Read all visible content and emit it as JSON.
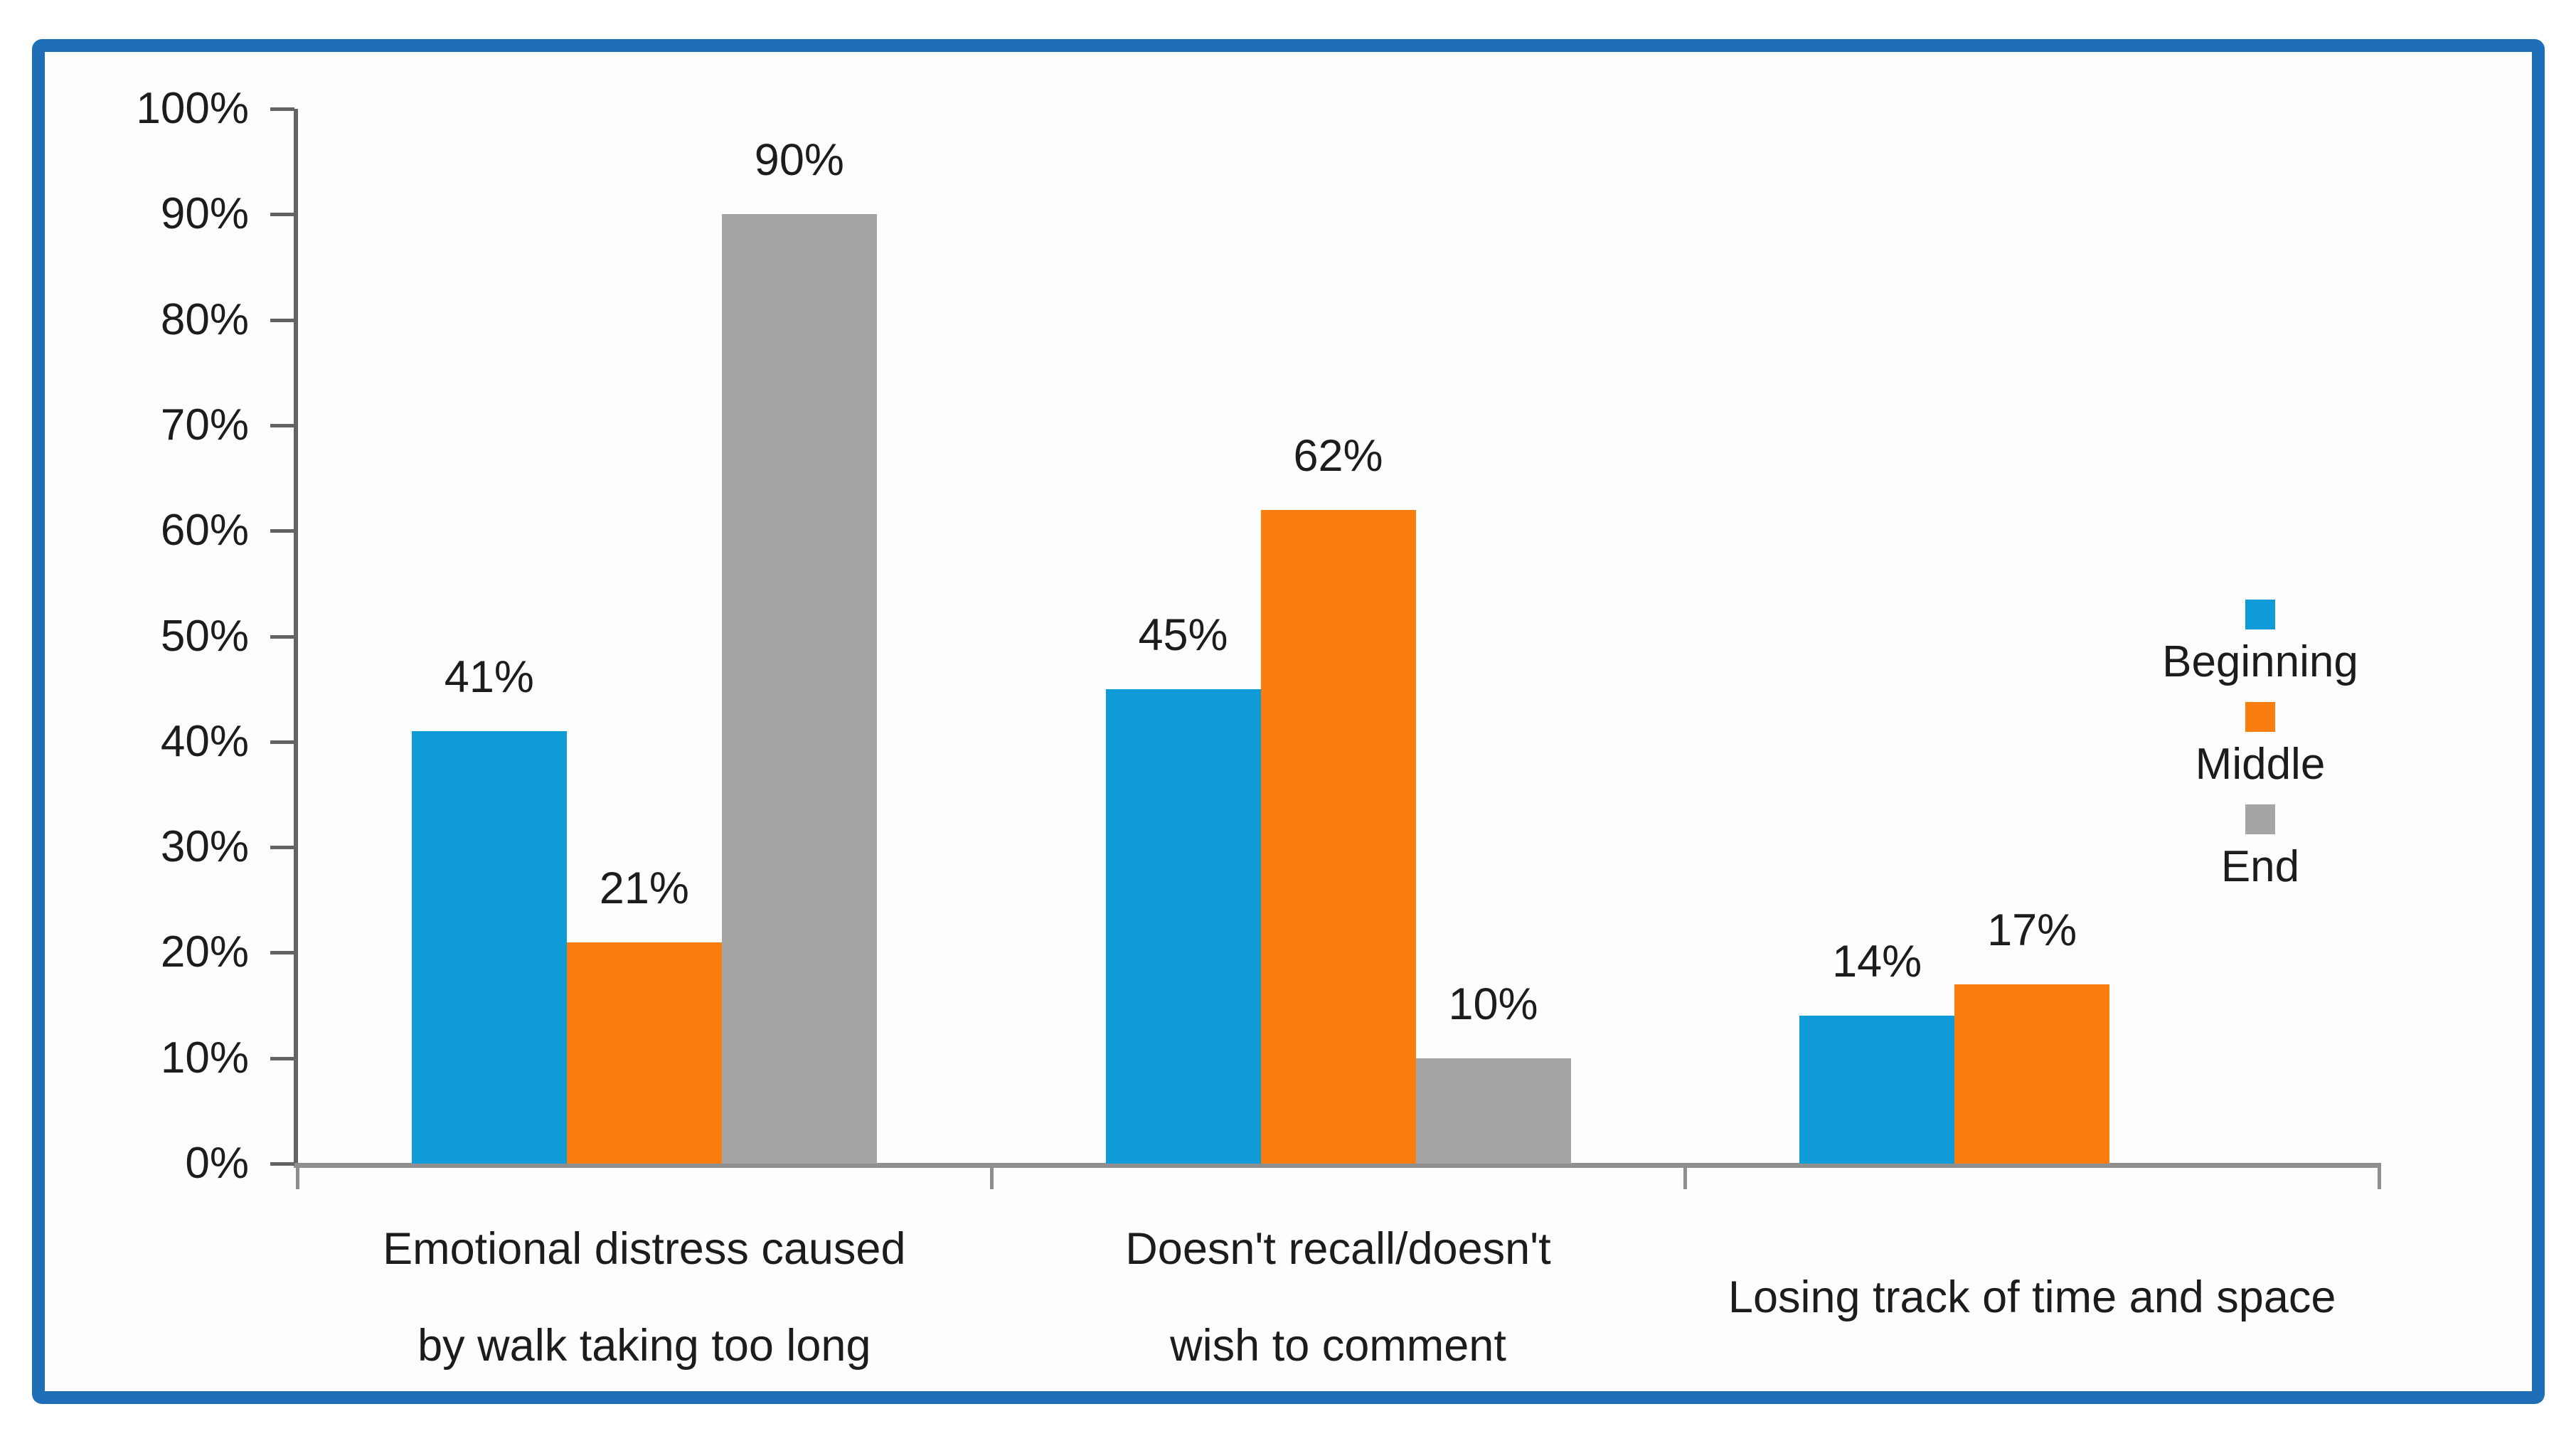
{
  "frame": {
    "border_color": "#1E6FB8",
    "background_color": "#FDFDFD"
  },
  "chart_data": {
    "type": "bar",
    "title": "",
    "xlabel": "",
    "ylabel": "",
    "categories": [
      [
        "Emotional distress caused",
        "by walk taking too long"
      ],
      [
        "Doesn't recall/doesn't",
        "wish to comment"
      ],
      [
        "Losing track of time and space"
      ]
    ],
    "series": [
      {
        "name": "Beginning",
        "color": "#0E9BD8",
        "values": [
          41,
          45,
          14
        ],
        "labels": [
          "41%",
          "45%",
          "14%"
        ]
      },
      {
        "name": "Middle",
        "color": "#FA7D0F",
        "values": [
          21,
          62,
          17
        ],
        "labels": [
          "21%",
          "62%",
          "17%"
        ]
      },
      {
        "name": "End",
        "color": "#A5A5A5",
        "values": [
          90,
          10,
          null
        ],
        "labels": [
          "90%",
          "10%",
          ""
        ]
      }
    ],
    "y_axis": {
      "min": 0,
      "max": 100,
      "tick_step": 10,
      "tick_labels": [
        "100%",
        "90%",
        "80%",
        "70%",
        "60%",
        "50%",
        "40%",
        "30%",
        "20%",
        "10%",
        "0%"
      ]
    },
    "legend": {
      "position": "right",
      "items": [
        "Beginning",
        "Middle",
        "End"
      ]
    },
    "grid": "off",
    "colors": {
      "y_axis_line": "#636363",
      "x_axis_line": "#8F8F8F",
      "text": "#1C1C1C"
    }
  }
}
